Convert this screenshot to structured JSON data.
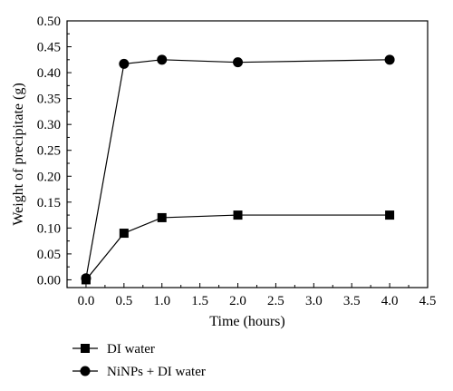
{
  "chart_data": {
    "type": "line",
    "xlabel": "Time (hours)",
    "ylabel": "Weight of precipitate (g)",
    "xlim": [
      -0.25,
      4.5
    ],
    "ylim": [
      -0.015,
      0.5
    ],
    "xticks": [
      0.0,
      0.5,
      1.0,
      1.5,
      2.0,
      2.5,
      3.0,
      3.5,
      4.0,
      4.5
    ],
    "xtick_labels": [
      "0.0",
      "0.5",
      "1.0",
      "1.5",
      "2.0",
      "2.5",
      "3.0",
      "3.5",
      "4.0",
      "4.5"
    ],
    "yticks": [
      0.0,
      0.05,
      0.1,
      0.15,
      0.2,
      0.25,
      0.3,
      0.35,
      0.4,
      0.45,
      0.5
    ],
    "ytick_labels": [
      "0.00",
      "0.05",
      "0.10",
      "0.15",
      "0.20",
      "0.25",
      "0.30",
      "0.35",
      "0.40",
      "0.45",
      "0.50"
    ],
    "grid": false,
    "legend_position": "bottom-left, below plot",
    "series": [
      {
        "name": "DI water",
        "marker": "square",
        "color": "#000000",
        "x": [
          0.0,
          0.5,
          1.0,
          2.0,
          4.0
        ],
        "y": [
          0.0,
          0.09,
          0.12,
          0.125,
          0.125
        ]
      },
      {
        "name": "NiNPs + DI water",
        "marker": "circle",
        "color": "#000000",
        "x": [
          0.0,
          0.5,
          1.0,
          2.0,
          4.0
        ],
        "y": [
          0.003,
          0.417,
          0.425,
          0.42,
          0.425
        ]
      }
    ]
  }
}
